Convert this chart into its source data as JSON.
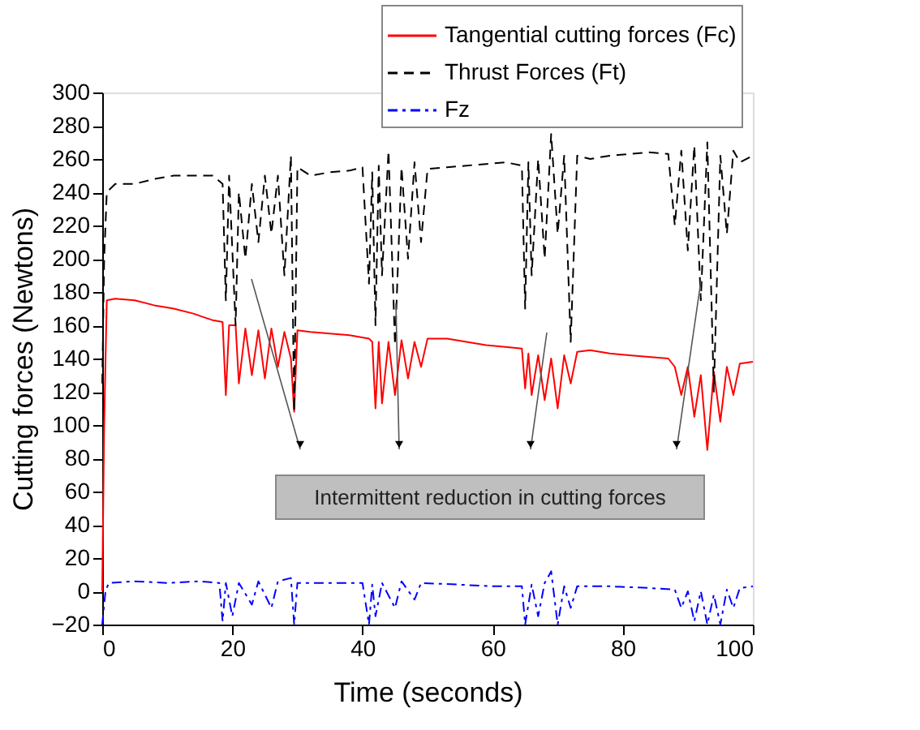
{
  "chart_data": {
    "type": "line",
    "xlabel": "Time (seconds)",
    "ylabel": "Cutting forces (Newtons)",
    "xlim": [
      0,
      100
    ],
    "xticks": [
      0,
      20,
      40,
      60,
      80,
      100
    ],
    "ylim": [
      -20,
      300
    ],
    "yticks": [
      -20,
      0,
      20,
      40,
      60,
      80,
      100,
      120,
      140,
      160,
      180,
      200,
      220,
      240,
      260,
      280,
      300
    ],
    "grid": false,
    "legend": "top right",
    "marker": "none",
    "annotations": [
      "Intermittent reduction in cutting forces"
    ],
    "series": [
      {
        "name": "Tangential cutting forces (Fc)",
        "color": "#ff0000",
        "line_style": "solid",
        "x": [
          0,
          0.3,
          0.7,
          2,
          5,
          8,
          11,
          14,
          17,
          18.5,
          19,
          19.5,
          20.5,
          21,
          22,
          23,
          24,
          25,
          26,
          27,
          28,
          29,
          29.5,
          30,
          32,
          35,
          38,
          41,
          41.5,
          42,
          42.5,
          43,
          44,
          45,
          46,
          47,
          48,
          49,
          50,
          53,
          56,
          59,
          62,
          64.5,
          65,
          65.5,
          66,
          67,
          68,
          69,
          70,
          71,
          72,
          73,
          75,
          78,
          81,
          84,
          87,
          88,
          89,
          90,
          91,
          92,
          93,
          94,
          95,
          96,
          97,
          98,
          100
        ],
        "values": [
          0,
          100,
          175,
          176,
          175,
          172,
          170,
          167,
          163,
          162,
          118,
          160,
          160,
          125,
          158,
          130,
          157,
          128,
          158,
          135,
          156,
          140,
          108,
          157,
          156,
          155,
          154,
          152,
          150,
          110,
          150,
          113,
          150,
          118,
          151,
          128,
          150,
          135,
          152,
          152,
          150,
          148,
          147,
          146,
          122,
          143,
          118,
          142,
          115,
          140,
          110,
          142,
          125,
          144,
          145,
          143,
          142,
          141,
          140,
          135,
          118,
          135,
          105,
          130,
          85,
          132,
          102,
          135,
          118,
          137,
          138
        ]
      },
      {
        "name": "Thrust Forces (Ft)",
        "color": "#000000",
        "line_style": "dashed",
        "x": [
          0,
          0.3,
          0.7,
          2,
          5,
          8,
          11,
          14,
          17,
          18.5,
          19,
          19.5,
          20.5,
          21,
          22,
          23,
          24,
          25,
          26,
          27,
          28,
          29,
          29.5,
          30,
          32,
          35,
          38,
          40,
          41,
          41.5,
          42,
          42.5,
          43,
          44,
          45,
          46,
          47,
          48,
          49,
          50,
          53,
          56,
          59,
          62,
          64.5,
          65,
          65.5,
          66,
          67,
          68,
          69,
          70,
          71,
          72,
          73,
          75,
          78,
          81,
          84,
          87,
          88,
          89,
          90,
          91,
          92,
          93,
          94,
          95,
          96,
          97,
          98,
          100
        ],
        "values": [
          125,
          200,
          240,
          245,
          245,
          248,
          250,
          250,
          250,
          245,
          175,
          250,
          160,
          240,
          200,
          245,
          210,
          250,
          215,
          250,
          190,
          262,
          108,
          255,
          250,
          252,
          253,
          255,
          185,
          252,
          160,
          256,
          190,
          265,
          148,
          255,
          200,
          258,
          210,
          254,
          255,
          256,
          257,
          258,
          256,
          170,
          258,
          190,
          260,
          200,
          275,
          215,
          262,
          150,
          262,
          260,
          262,
          263,
          264,
          263,
          220,
          265,
          205,
          268,
          175,
          270,
          120,
          262,
          215,
          265,
          258,
          262
        ]
      },
      {
        "name": "Fz",
        "color": "#0000ff",
        "line_style": "dashdot",
        "x": [
          0,
          0.5,
          1,
          5,
          10,
          15,
          18,
          18.5,
          19,
          20,
          21,
          23,
          24,
          26,
          27,
          29,
          29.5,
          30,
          35,
          40,
          41,
          41.5,
          42,
          43,
          45,
          46,
          48,
          49,
          55,
          60,
          64.5,
          65,
          66,
          67,
          68,
          69,
          70,
          71,
          72,
          73,
          78,
          84,
          88,
          89,
          90,
          91,
          92,
          93,
          94,
          95,
          96,
          97,
          98,
          100
        ],
        "values": [
          -20,
          0,
          5,
          6,
          5,
          6,
          5,
          -18,
          5,
          -15,
          5,
          -8,
          6,
          -10,
          6,
          8,
          -20,
          5,
          5,
          5,
          -20,
          4,
          -15,
          5,
          -10,
          6,
          -5,
          5,
          4,
          3,
          3,
          -20,
          4,
          -15,
          5,
          12,
          -20,
          3,
          -10,
          3,
          3,
          2,
          1,
          -10,
          0,
          -18,
          0,
          -20,
          -2,
          -20,
          1,
          -10,
          2,
          3
        ]
      }
    ]
  }
}
